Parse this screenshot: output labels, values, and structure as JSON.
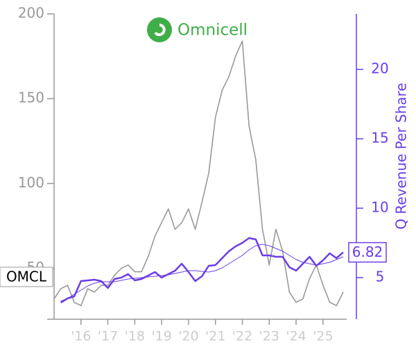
{
  "chart_data": {
    "type": "line",
    "logo_text": "Omnicell",
    "ticker": "OMCL",
    "y2label": "Q Revenue Per Share",
    "x": [
      2015,
      2015.25,
      2015.5,
      2015.75,
      2016,
      2016.25,
      2016.5,
      2016.75,
      2017,
      2017.25,
      2017.5,
      2017.75,
      2018,
      2018.25,
      2018.5,
      2018.75,
      2019,
      2019.25,
      2019.5,
      2019.75,
      2020,
      2020.25,
      2020.5,
      2020.75,
      2021,
      2021.25,
      2021.5,
      2021.75,
      2022,
      2022.25,
      2022.5,
      2022.75,
      2023,
      2023.25,
      2023.5,
      2023.75,
      2024,
      2024.25,
      2024.5,
      2024.75,
      2025,
      2025.25,
      2025.5,
      2025.75
    ],
    "series": [
      {
        "color": "#999999",
        "values": [
          32,
          38,
          40,
          30,
          28,
          38,
          36,
          40,
          40,
          46,
          50,
          52,
          48,
          48,
          57,
          69,
          77,
          85,
          73,
          77,
          85,
          73,
          89,
          106,
          139,
          155,
          163,
          175,
          184,
          134,
          114,
          73,
          52,
          73,
          60,
          36,
          30,
          32,
          44,
          52,
          40,
          30,
          28,
          36
        ]
      },
      {
        "color": "#6a3de8",
        "axis": "y2",
        "values": [
          null,
          3.2,
          3.5,
          3.65,
          4.75,
          4.8,
          4.85,
          4.75,
          4.25,
          4.9,
          5.0,
          5.25,
          4.8,
          4.9,
          5.15,
          5.4,
          5.0,
          5.25,
          5.5,
          6.0,
          5.4,
          4.75,
          5.1,
          5.85,
          5.9,
          6.4,
          6.9,
          7.25,
          7.5,
          7.85,
          7.75,
          6.6,
          6.6,
          6.5,
          6.5,
          5.75,
          5.5,
          6.0,
          6.5,
          5.85,
          6.25,
          6.75,
          6.4,
          6.82
        ]
      },
      {
        "color": "#6a3de8",
        "axis": "y2",
        "values": [
          null,
          3.3,
          3.5,
          3.8,
          4.1,
          4.4,
          4.6,
          4.7,
          4.7,
          4.7,
          4.8,
          4.9,
          4.95,
          5.0,
          5.05,
          5.1,
          5.15,
          5.2,
          5.3,
          5.4,
          5.5,
          5.5,
          5.45,
          5.4,
          5.5,
          5.7,
          6.0,
          6.3,
          6.6,
          7.0,
          7.3,
          7.4,
          7.3,
          7.1,
          6.9,
          6.6,
          6.3,
          6.1,
          6.0,
          5.9,
          6.0,
          6.1,
          6.3,
          6.5
        ]
      }
    ],
    "xlim": [
      2015,
      2025.88
    ],
    "xticks": [
      {
        "value": 2016,
        "label": "'16"
      },
      {
        "value": 2017,
        "label": "'17"
      },
      {
        "value": 2018,
        "label": "'18"
      },
      {
        "value": 2019,
        "label": "'19"
      },
      {
        "value": 2020,
        "label": "'20"
      },
      {
        "value": 2021,
        "label": "'21"
      },
      {
        "value": 2022,
        "label": "'22"
      },
      {
        "value": 2023,
        "label": "'23"
      },
      {
        "value": 2024,
        "label": "'24"
      },
      {
        "value": 2025,
        "label": "'25"
      }
    ],
    "ylim": [
      20,
      200
    ],
    "yticks": [
      50,
      100,
      150,
      200
    ],
    "y2lim": [
      2,
      24
    ],
    "y2ticks": [
      5,
      10,
      15,
      20
    ]
  }
}
